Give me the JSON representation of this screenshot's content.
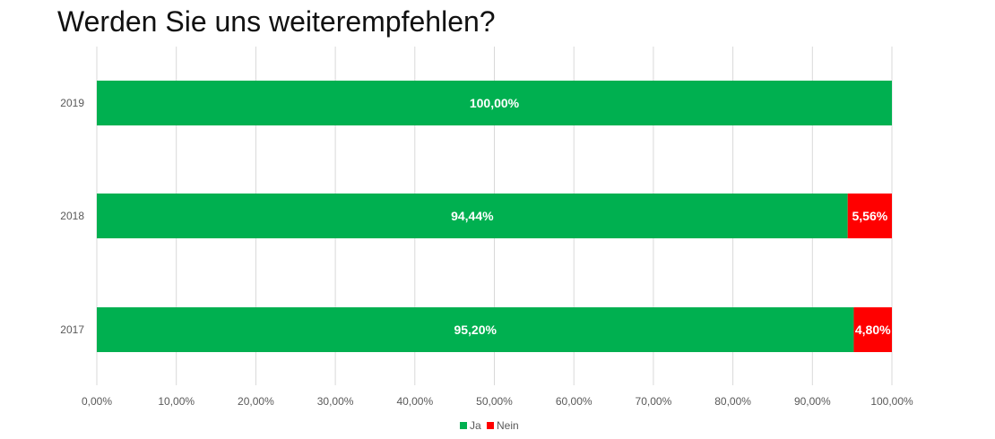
{
  "colors": {
    "ja": "#00B050",
    "nein": "#FF0000",
    "grid": "#D9D9D9",
    "text": "#595959"
  },
  "chart_data": {
    "type": "bar",
    "orientation": "horizontal",
    "stacked": "percent",
    "title": "Werden Sie uns weiterempfehlen?",
    "categories": [
      "2019",
      "2018",
      "2017"
    ],
    "series": [
      {
        "name": "Ja",
        "color": "#00B050",
        "values": [
          100.0,
          94.44,
          95.2
        ],
        "labels": [
          "100,00%",
          "94,44%",
          "95,20%"
        ]
      },
      {
        "name": "Nein",
        "color": "#FF0000",
        "values": [
          0,
          5.56,
          4.8
        ],
        "labels": [
          "",
          "5,56%",
          "4,80%"
        ]
      }
    ],
    "xlim": [
      0,
      100
    ],
    "x_ticks": [
      "0,00%",
      "10,00%",
      "20,00%",
      "30,00%",
      "40,00%",
      "50,00%",
      "60,00%",
      "70,00%",
      "80,00%",
      "90,00%",
      "100,00%"
    ],
    "grid": true,
    "legend": "bottom"
  }
}
